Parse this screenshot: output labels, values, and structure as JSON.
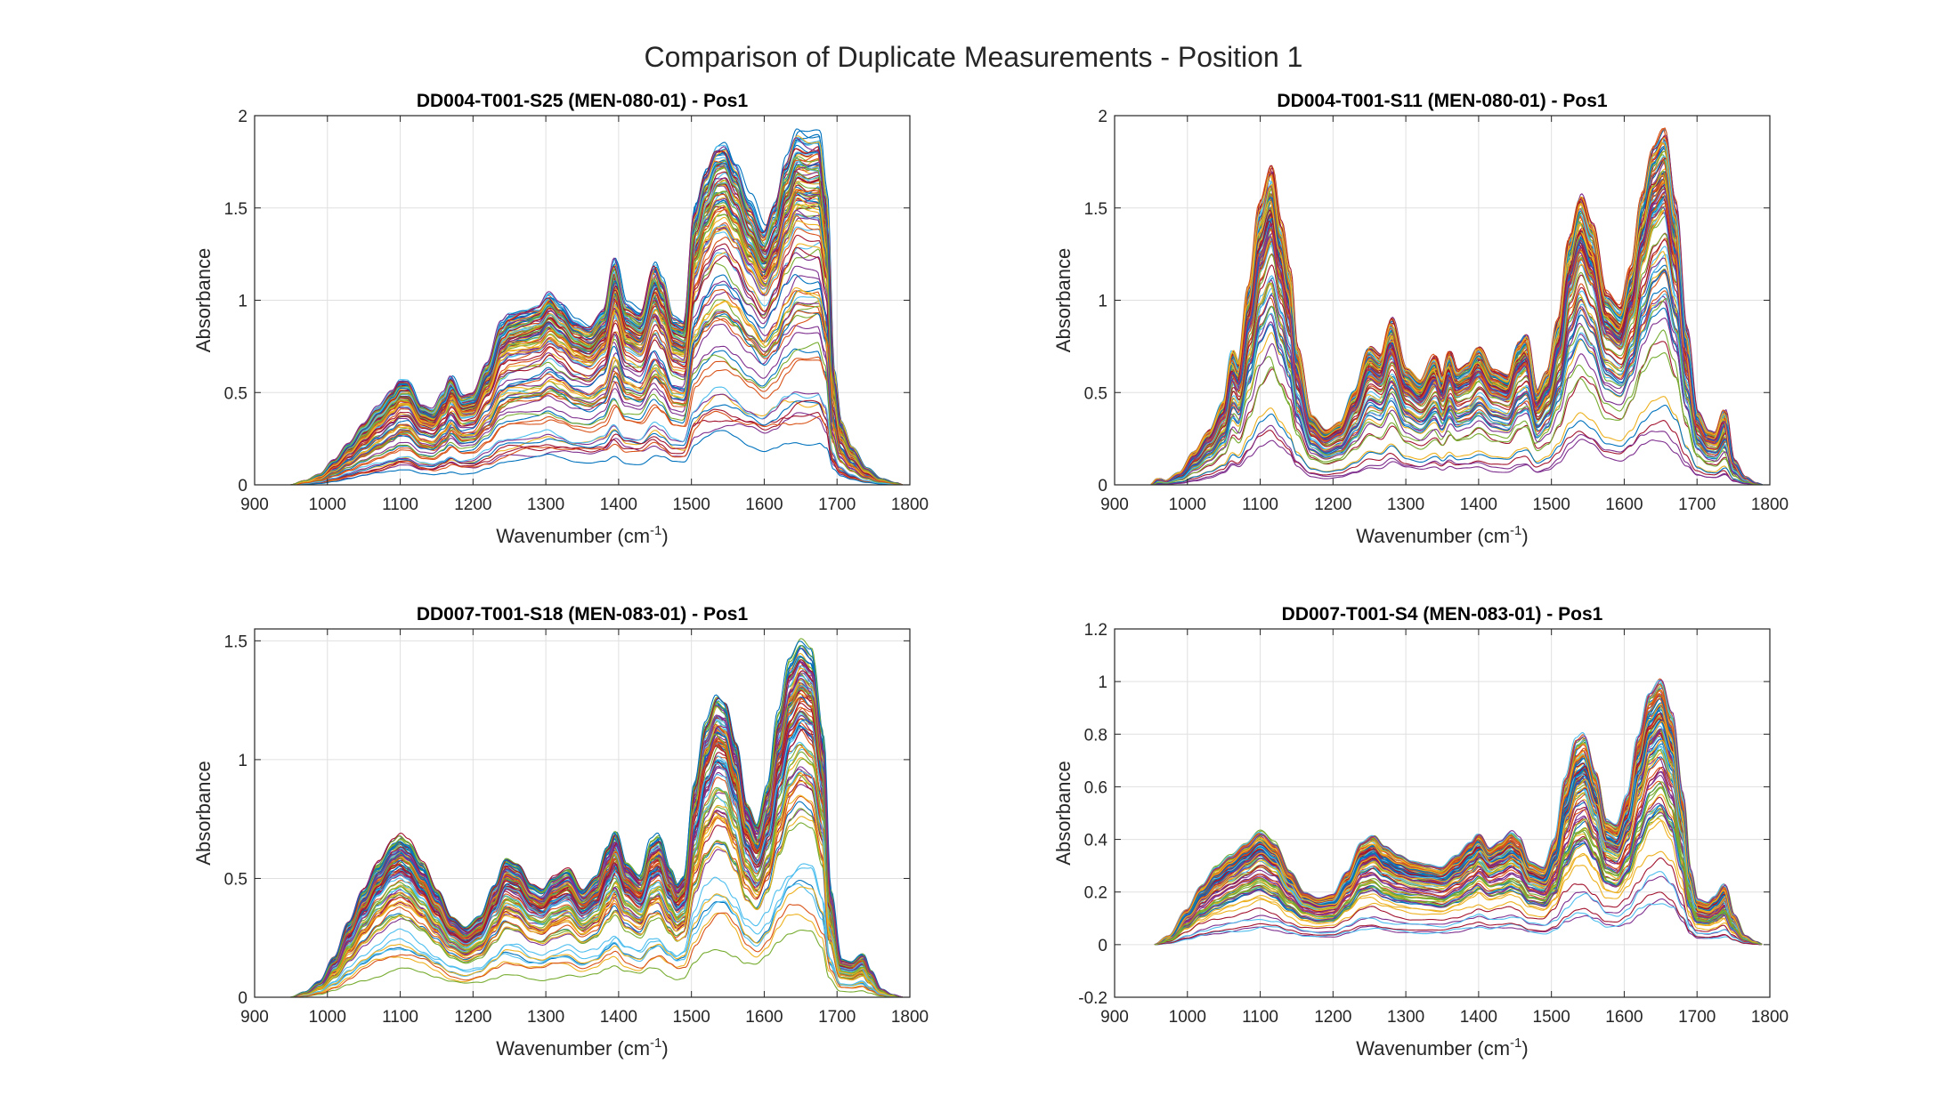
{
  "figure": {
    "title": "Comparison of Duplicate Measurements - Position 1"
  },
  "chart_data": [
    {
      "type": "line",
      "title": "DD004-T001-S25 (MEN-080-01) - Pos1",
      "xlabel": "Wavenumber (cm",
      "xlabel_sup": "-1",
      "xlabel_end": ")",
      "ylabel": "Absorbance",
      "xlim": [
        900,
        1800
      ],
      "ylim": [
        0,
        2
      ],
      "xticks": [
        900,
        1000,
        1100,
        1200,
        1300,
        1400,
        1500,
        1600,
        1700,
        1800
      ],
      "yticks": [
        0,
        0.5,
        1,
        1.5,
        2
      ],
      "ytick_labels": [
        "0",
        "0.5",
        "1",
        "1.5",
        "2"
      ],
      "grid": true,
      "series_count": 110,
      "x_start": 950,
      "x_end": 1790,
      "mean_profile": {
        "x": [
          950,
          970,
          990,
          1010,
          1030,
          1050,
          1070,
          1090,
          1100,
          1110,
          1130,
          1145,
          1160,
          1170,
          1185,
          1200,
          1220,
          1240,
          1250,
          1270,
          1290,
          1305,
          1320,
          1340,
          1360,
          1380,
          1395,
          1410,
          1430,
          1450,
          1460,
          1475,
          1490,
          1505,
          1520,
          1535,
          1545,
          1560,
          1580,
          1600,
          1615,
          1630,
          1645,
          1660,
          1675,
          1685,
          1695,
          1705,
          1720,
          1740,
          1760,
          1780,
          1790
        ],
        "y": [
          0,
          0.02,
          0.05,
          0.12,
          0.2,
          0.29,
          0.37,
          0.45,
          0.5,
          0.5,
          0.38,
          0.36,
          0.44,
          0.52,
          0.43,
          0.44,
          0.58,
          0.78,
          0.82,
          0.84,
          0.86,
          0.92,
          0.87,
          0.79,
          0.76,
          0.84,
          1.08,
          0.87,
          0.83,
          1.06,
          0.98,
          0.8,
          0.78,
          1.34,
          1.52,
          1.63,
          1.64,
          1.54,
          1.37,
          1.23,
          1.35,
          1.55,
          1.68,
          1.66,
          1.67,
          1.4,
          0.55,
          0.3,
          0.18,
          0.08,
          0.03,
          0.01,
          0
        ]
      }
    },
    {
      "type": "line",
      "title": "DD004-T001-S11 (MEN-080-01) - Pos1",
      "xlabel": "Wavenumber (cm",
      "xlabel_sup": "-1",
      "xlabel_end": ")",
      "ylabel": "Absorbance",
      "xlim": [
        900,
        1800
      ],
      "ylim": [
        0,
        2
      ],
      "xticks": [
        900,
        1000,
        1100,
        1200,
        1300,
        1400,
        1500,
        1600,
        1700,
        1800
      ],
      "yticks": [
        0,
        0.5,
        1,
        1.5,
        2
      ],
      "ytick_labels": [
        "0",
        "0.5",
        "1",
        "1.5",
        "2"
      ],
      "grid": true,
      "series_count": 110,
      "x_start": 950,
      "x_end": 1790,
      "mean_profile": {
        "x": [
          950,
          960,
          970,
          990,
          1010,
          1030,
          1050,
          1062,
          1070,
          1085,
          1100,
          1115,
          1128,
          1140,
          1150,
          1170,
          1190,
          1210,
          1230,
          1250,
          1265,
          1280,
          1300,
          1320,
          1340,
          1350,
          1360,
          1370,
          1385,
          1400,
          1420,
          1440,
          1455,
          1465,
          1480,
          1495,
          1510,
          1525,
          1540,
          1555,
          1575,
          1595,
          1610,
          1625,
          1640,
          1655,
          1670,
          1685,
          1700,
          1715,
          1725,
          1738,
          1750,
          1765,
          1780,
          1790
        ],
        "y": [
          0,
          0.03,
          0.02,
          0.06,
          0.16,
          0.26,
          0.4,
          0.64,
          0.58,
          0.96,
          1.35,
          1.52,
          1.25,
          1.02,
          0.65,
          0.33,
          0.26,
          0.3,
          0.45,
          0.66,
          0.62,
          0.8,
          0.56,
          0.5,
          0.62,
          0.52,
          0.64,
          0.55,
          0.58,
          0.66,
          0.55,
          0.52,
          0.68,
          0.72,
          0.45,
          0.55,
          0.8,
          1.2,
          1.4,
          1.26,
          0.92,
          0.85,
          1.05,
          1.4,
          1.62,
          1.7,
          1.35,
          0.75,
          0.35,
          0.26,
          0.25,
          0.36,
          0.12,
          0.04,
          0.01,
          0
        ]
      }
    },
    {
      "type": "line",
      "title": "DD007-T001-S18 (MEN-083-01) - Pos1",
      "xlabel": "Wavenumber (cm",
      "xlabel_sup": "-1",
      "xlabel_end": ")",
      "ylabel": "Absorbance",
      "xlim": [
        900,
        1800
      ],
      "ylim": [
        0,
        1.55
      ],
      "xticks": [
        900,
        1000,
        1100,
        1200,
        1300,
        1400,
        1500,
        1600,
        1700,
        1800
      ],
      "yticks": [
        0,
        0.5,
        1,
        1.5
      ],
      "ytick_labels": [
        "0",
        "0.5",
        "1",
        "1.5"
      ],
      "grid": true,
      "series_count": 110,
      "x_start": 950,
      "x_end": 1790,
      "mean_profile": {
        "x": [
          950,
          970,
          990,
          1010,
          1030,
          1050,
          1070,
          1090,
          1100,
          1110,
          1130,
          1150,
          1170,
          1190,
          1210,
          1230,
          1245,
          1260,
          1280,
          1295,
          1310,
          1330,
          1350,
          1370,
          1385,
          1395,
          1410,
          1430,
          1445,
          1455,
          1470,
          1480,
          1490,
          1505,
          1520,
          1535,
          1545,
          1560,
          1575,
          1590,
          1605,
          1620,
          1635,
          1650,
          1665,
          1680,
          1690,
          1705,
          1720,
          1735,
          1745,
          1760,
          1775,
          1790
        ],
        "y": [
          0,
          0.02,
          0.06,
          0.15,
          0.28,
          0.4,
          0.5,
          0.58,
          0.6,
          0.58,
          0.5,
          0.4,
          0.3,
          0.26,
          0.3,
          0.42,
          0.52,
          0.5,
          0.42,
          0.4,
          0.45,
          0.48,
          0.4,
          0.45,
          0.56,
          0.62,
          0.5,
          0.45,
          0.58,
          0.6,
          0.48,
          0.42,
          0.45,
          0.8,
          1.02,
          1.12,
          1.1,
          0.95,
          0.72,
          0.64,
          0.78,
          1.05,
          1.25,
          1.32,
          1.28,
          0.98,
          0.4,
          0.14,
          0.13,
          0.16,
          0.1,
          0.03,
          0.01,
          0
        ]
      }
    },
    {
      "type": "line",
      "title": "DD007-T001-S4 (MEN-083-01) - Pos1",
      "xlabel": "Wavenumber (cm",
      "xlabel_sup": "-1",
      "xlabel_end": ")",
      "ylabel": "Absorbance",
      "xlim": [
        900,
        1800
      ],
      "ylim": [
        -0.2,
        1.2
      ],
      "xticks": [
        900,
        1000,
        1100,
        1200,
        1300,
        1400,
        1500,
        1600,
        1700,
        1800
      ],
      "yticks": [
        -0.2,
        0,
        0.2,
        0.4,
        0.6,
        0.8,
        1,
        1.2
      ],
      "ytick_labels": [
        "-0.2",
        "0",
        "0.2",
        "0.4",
        "0.6",
        "0.8",
        "1",
        "1.2"
      ],
      "grid": true,
      "series_count": 110,
      "x_start": 955,
      "x_end": 1790,
      "mean_profile": {
        "x": [
          955,
          975,
          1000,
          1020,
          1040,
          1060,
          1080,
          1100,
          1120,
          1140,
          1160,
          1180,
          1200,
          1220,
          1240,
          1255,
          1270,
          1290,
          1310,
          1330,
          1350,
          1370,
          1390,
          1400,
          1415,
          1430,
          1445,
          1455,
          1470,
          1490,
          1505,
          1520,
          1535,
          1545,
          1560,
          1575,
          1590,
          1605,
          1620,
          1635,
          1650,
          1665,
          1680,
          1690,
          1700,
          1715,
          1725,
          1738,
          1750,
          1765,
          1780,
          1790
        ],
        "y": [
          0,
          0.03,
          0.12,
          0.2,
          0.26,
          0.3,
          0.34,
          0.38,
          0.34,
          0.25,
          0.18,
          0.16,
          0.17,
          0.25,
          0.35,
          0.37,
          0.33,
          0.3,
          0.28,
          0.27,
          0.26,
          0.3,
          0.35,
          0.38,
          0.33,
          0.35,
          0.38,
          0.36,
          0.28,
          0.26,
          0.35,
          0.55,
          0.68,
          0.7,
          0.58,
          0.42,
          0.4,
          0.5,
          0.7,
          0.85,
          0.9,
          0.78,
          0.5,
          0.25,
          0.15,
          0.14,
          0.16,
          0.2,
          0.1,
          0.03,
          0.01,
          0
        ]
      }
    }
  ],
  "colors": [
    "#0072BD",
    "#D95319",
    "#EDB120",
    "#7E2F8E",
    "#77AC30",
    "#4DBEEE",
    "#A2142F"
  ]
}
